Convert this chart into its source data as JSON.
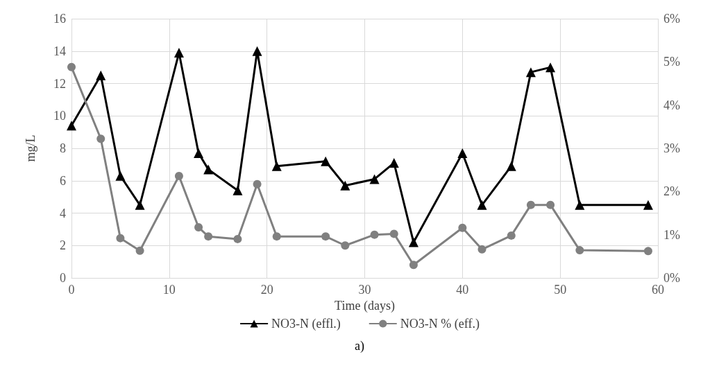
{
  "chart_data": {
    "type": "line",
    "xlabel": "Time (days)",
    "ylabel": "mg/L",
    "x": [
      0,
      3,
      5,
      7,
      11,
      13,
      14,
      17,
      19,
      21,
      26,
      28,
      31,
      33,
      35,
      40,
      42,
      45,
      47,
      49,
      52,
      59
    ],
    "series": [
      {
        "name": "NO3-N (effl.)",
        "color": "#000000",
        "marker": "triangle",
        "values": [
          9.4,
          12.5,
          6.3,
          4.5,
          13.9,
          7.7,
          6.7,
          5.4,
          14.0,
          6.9,
          7.2,
          5.7,
          6.1,
          7.1,
          2.2,
          7.7,
          4.5,
          6.9,
          12.7,
          13.0,
          4.5,
          4.5
        ]
      },
      {
        "name": "NO3-N % (eff.)",
        "color": "#808080",
        "marker": "circle",
        "axis": "y2",
        "values": [
          4.88,
          3.22,
          0.92,
          0.63,
          2.36,
          1.17,
          0.96,
          0.9,
          2.17,
          0.96,
          0.96,
          0.75,
          1.0,
          1.02,
          0.3,
          1.16,
          0.66,
          0.98,
          1.69,
          1.69,
          0.64,
          0.62
        ]
      }
    ],
    "xlim": [
      0,
      60
    ],
    "xticks": [
      0,
      10,
      20,
      30,
      40,
      50,
      60
    ],
    "ylim": [
      0,
      16
    ],
    "yticks": [
      0,
      2,
      4,
      6,
      8,
      10,
      12,
      14,
      16
    ],
    "y2lim": [
      0,
      6
    ],
    "y2ticks": [
      {
        "value": 0,
        "label": "0%"
      },
      {
        "value": 1,
        "label": "1%"
      },
      {
        "value": 2,
        "label": "2%"
      },
      {
        "value": 3,
        "label": "3%"
      },
      {
        "value": 4,
        "label": "4%"
      },
      {
        "value": 5,
        "label": "5%"
      },
      {
        "value": 6,
        "label": "6%"
      }
    ],
    "grid": true,
    "legend": "bottom",
    "annotations": [
      "a)"
    ]
  }
}
